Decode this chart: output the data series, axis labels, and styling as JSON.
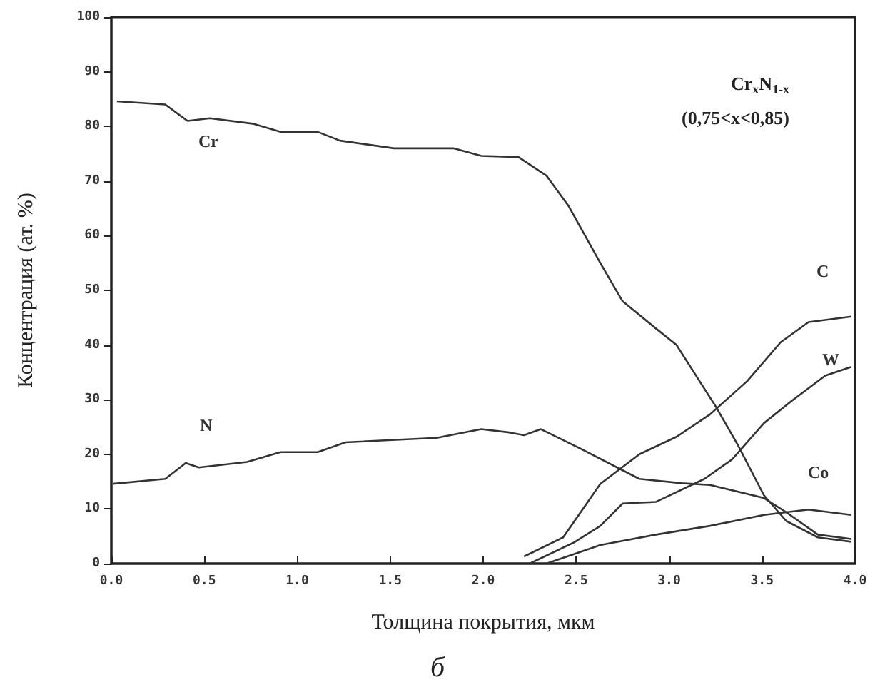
{
  "chart_data": {
    "type": "line",
    "subtitle": "б",
    "xlabel": "Толщина покрытия, мкм",
    "ylabel": "Концентрация (ат. %)",
    "xlim": [
      0,
      4
    ],
    "xticks": [
      {
        "value": 0,
        "label": "0.0"
      },
      {
        "value": 0.5,
        "label": "0.5"
      },
      {
        "value": 1,
        "label": "1.0"
      },
      {
        "value": 1.5,
        "label": "1.5"
      },
      {
        "value": 2,
        "label": "2.0"
      },
      {
        "value": 2.5,
        "label": "2.5"
      },
      {
        "value": 3,
        "label": "3.0"
      },
      {
        "value": 3.5,
        "label": "3.5"
      },
      {
        "value": 4,
        "label": "4.0"
      }
    ],
    "ylim": [
      0,
      100
    ],
    "yticks": [
      0,
      10,
      20,
      30,
      40,
      50,
      60,
      70,
      80,
      90,
      100
    ],
    "grid": false,
    "marker": "none",
    "line_style": "solid",
    "series": [
      {
        "name": "Cr",
        "color": "#333333",
        "x": [
          0.03,
          0.29,
          0.41,
          0.53,
          0.76,
          0.91,
          1.11,
          1.23,
          1.52,
          1.84,
          1.99,
          2.19,
          2.34,
          2.46,
          2.63,
          2.75,
          2.93,
          3.04,
          3.25,
          3.37,
          3.51,
          3.63,
          3.8,
          3.98
        ],
        "values": [
          84.6,
          84,
          81,
          81.5,
          80.5,
          79,
          79,
          77.4,
          76,
          76,
          74.6,
          74.4,
          71,
          65.4,
          55,
          48,
          43,
          40,
          28.8,
          21.7,
          12.5,
          7.8,
          4.8,
          4
        ]
      },
      {
        "name": "N",
        "color": "#333333",
        "x": [
          0.01,
          0.29,
          0.4,
          0.47,
          0.73,
          0.91,
          1.11,
          1.26,
          1.75,
          1.99,
          2.14,
          2.22,
          2.31,
          2.52,
          2.84,
          3.07,
          3.22,
          3.51,
          3.63,
          3.8,
          3.98
        ],
        "values": [
          14.6,
          15.5,
          18.4,
          17.6,
          18.6,
          20.4,
          20.4,
          22.2,
          23,
          24.6,
          24,
          23.5,
          24.6,
          21.1,
          15.5,
          14.7,
          14.4,
          12,
          9.4,
          5.3,
          4.5
        ]
      },
      {
        "name": "C",
        "color": "#333333",
        "x": [
          2.22,
          2.43,
          2.63,
          2.84,
          3.04,
          3.22,
          3.42,
          3.6,
          3.75,
          3.98
        ],
        "values": [
          1.3,
          4.8,
          14.6,
          20,
          23.2,
          27.3,
          33.4,
          40.5,
          44.2,
          45.2
        ]
      },
      {
        "name": "W",
        "color": "#333333",
        "x": [
          2.25,
          2.49,
          2.63,
          2.75,
          2.93,
          3.19,
          3.34,
          3.51,
          3.66,
          3.84,
          3.98
        ],
        "values": [
          0,
          3.9,
          6.9,
          11,
          11.3,
          15.5,
          19.1,
          25.7,
          29.8,
          34.4,
          36
        ]
      },
      {
        "name": "Co",
        "color": "#333333",
        "x": [
          2.34,
          2.63,
          2.93,
          3.22,
          3.51,
          3.75,
          3.98
        ],
        "values": [
          0,
          3.4,
          5.3,
          6.9,
          8.9,
          9.9,
          8.9
        ]
      }
    ],
    "annotations": [
      "Cr$_{x}$N$_{1-x}$",
      "(0,75<x<0,85)"
    ]
  }
}
